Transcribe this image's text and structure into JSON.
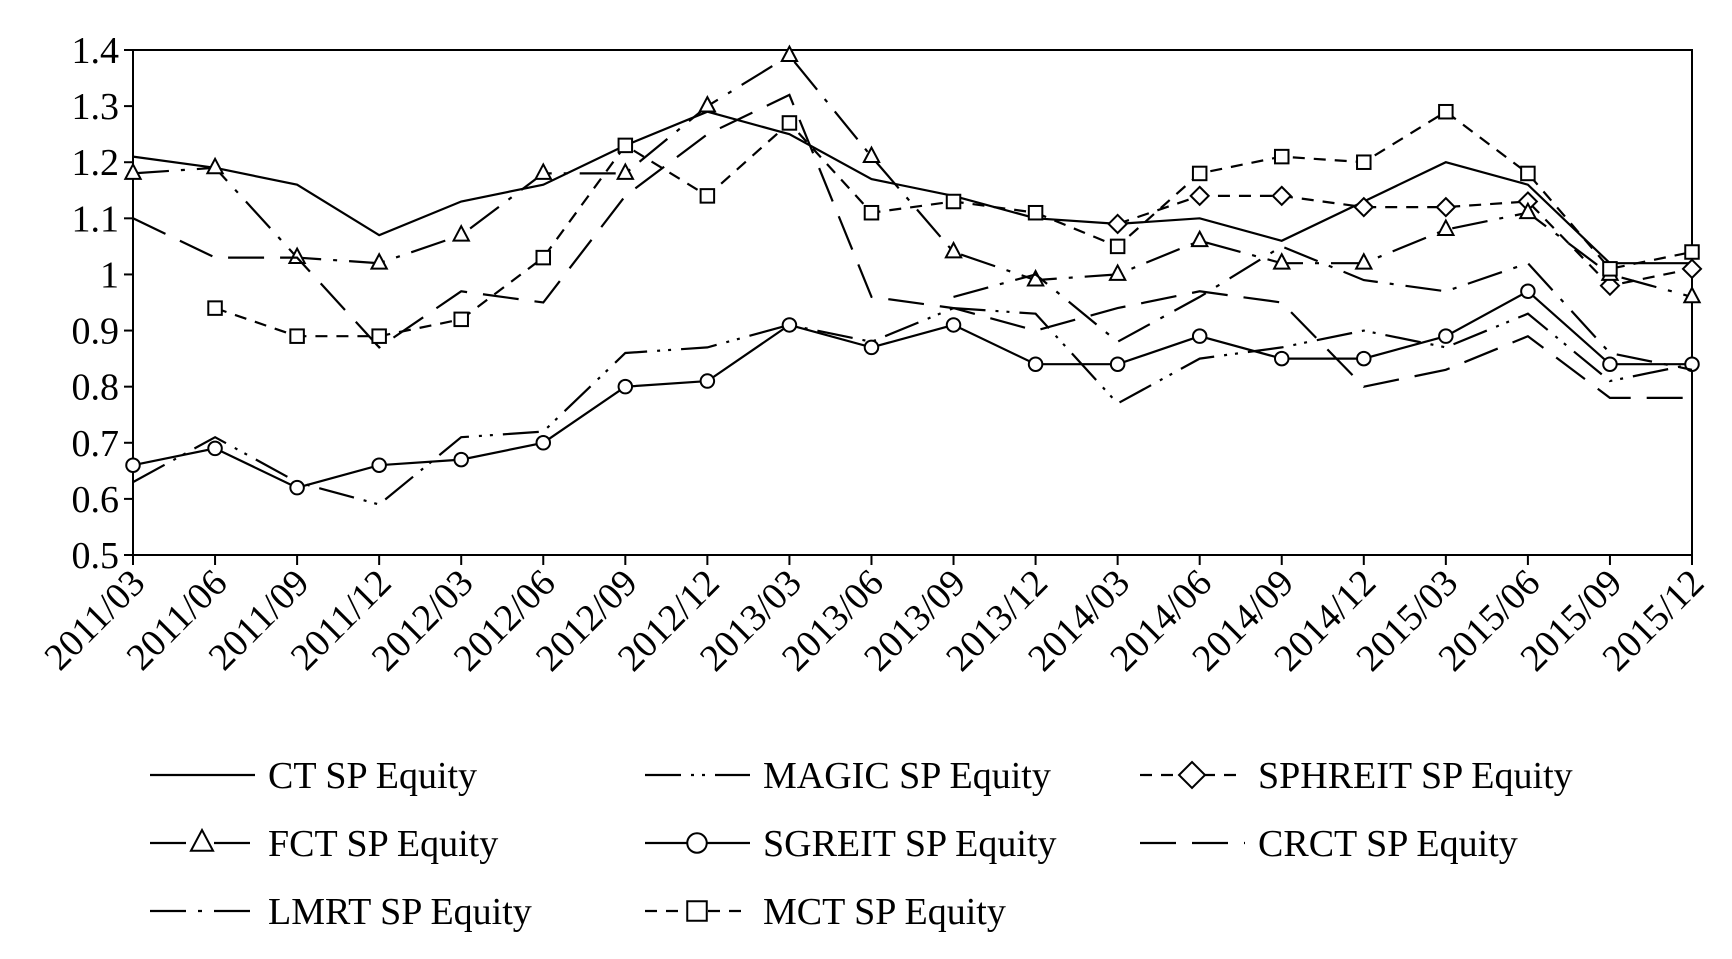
{
  "chart_data": {
    "type": "line",
    "title": "",
    "xlabel": "",
    "ylabel": "",
    "categories": [
      "2011/03",
      "2011/06",
      "2011/09",
      "2011/12",
      "2012/03",
      "2012/06",
      "2012/09",
      "2012/12",
      "2013/03",
      "2013/06",
      "2013/09",
      "2013/12",
      "2014/03",
      "2014/06",
      "2014/09",
      "2014/12",
      "2015/03",
      "2015/06",
      "2015/09",
      "2015/12"
    ],
    "ylim": [
      0.5,
      1.4
    ],
    "yticks": [
      "0.5",
      "0.6",
      "0.7",
      "0.8",
      "0.9",
      "1",
      "1.1",
      "1.2",
      "1.3",
      "1.4"
    ],
    "grid": false,
    "legend_position": "bottom",
    "series": [
      {
        "name": "CT SP Equity",
        "style": "solid",
        "marker": "none",
        "values": [
          1.21,
          1.19,
          1.16,
          1.07,
          1.13,
          1.16,
          1.23,
          1.29,
          1.25,
          1.17,
          1.14,
          1.1,
          1.09,
          1.1,
          1.06,
          1.13,
          1.2,
          1.16,
          1.02,
          1.02
        ]
      },
      {
        "name": "MAGIC SP Equity",
        "style": "dash-dot-dot",
        "marker": "none",
        "values": [
          0.63,
          0.71,
          0.63,
          0.59,
          0.71,
          0.72,
          0.86,
          0.87,
          0.91,
          0.88,
          0.94,
          0.93,
          0.77,
          0.85,
          0.87,
          0.9,
          0.87,
          0.93,
          0.81,
          0.84
        ]
      },
      {
        "name": "SPHREIT SP Equity",
        "style": "dash",
        "marker": "diamond",
        "values": [
          null,
          null,
          null,
          null,
          null,
          null,
          null,
          null,
          null,
          null,
          null,
          null,
          1.09,
          1.14,
          1.14,
          1.12,
          1.12,
          1.13,
          0.98,
          1.01
        ]
      },
      {
        "name": "FCT SP Equity",
        "style": "long-dash-dot",
        "marker": "triangle",
        "values": [
          1.18,
          1.19,
          1.03,
          1.02,
          1.07,
          1.18,
          1.18,
          1.3,
          1.39,
          1.21,
          1.04,
          0.99,
          1.0,
          1.06,
          1.02,
          1.02,
          1.08,
          1.11,
          1.0,
          0.96
        ]
      },
      {
        "name": "SGREIT SP Equity",
        "style": "solid",
        "marker": "circle",
        "values": [
          0.66,
          0.69,
          0.62,
          0.66,
          0.67,
          0.7,
          0.8,
          0.81,
          0.91,
          0.87,
          0.91,
          0.84,
          0.84,
          0.89,
          0.85,
          0.85,
          0.89,
          0.97,
          0.84,
          0.84
        ]
      },
      {
        "name": "CRCT SP Equity",
        "style": "long-dash",
        "marker": "none",
        "values": [
          1.1,
          1.03,
          1.03,
          0.87,
          0.97,
          0.95,
          1.14,
          1.25,
          1.32,
          0.96,
          0.94,
          0.9,
          0.94,
          0.97,
          0.95,
          0.8,
          0.83,
          0.89,
          0.78,
          0.78
        ]
      },
      {
        "name": "LMRT SP Equity",
        "style": "long-dash-dot",
        "marker": "none",
        "values": [
          null,
          null,
          null,
          null,
          null,
          null,
          null,
          null,
          null,
          null,
          0.96,
          1.0,
          0.88,
          0.96,
          1.05,
          0.99,
          0.97,
          1.02,
          0.86,
          0.83
        ]
      },
      {
        "name": "MCT SP Equity",
        "style": "dash",
        "marker": "square",
        "values": [
          null,
          0.94,
          0.89,
          0.89,
          0.92,
          1.03,
          1.23,
          1.14,
          1.27,
          1.11,
          1.13,
          1.11,
          1.05,
          1.18,
          1.21,
          1.2,
          1.29,
          1.18,
          1.01,
          1.04
        ]
      }
    ]
  }
}
